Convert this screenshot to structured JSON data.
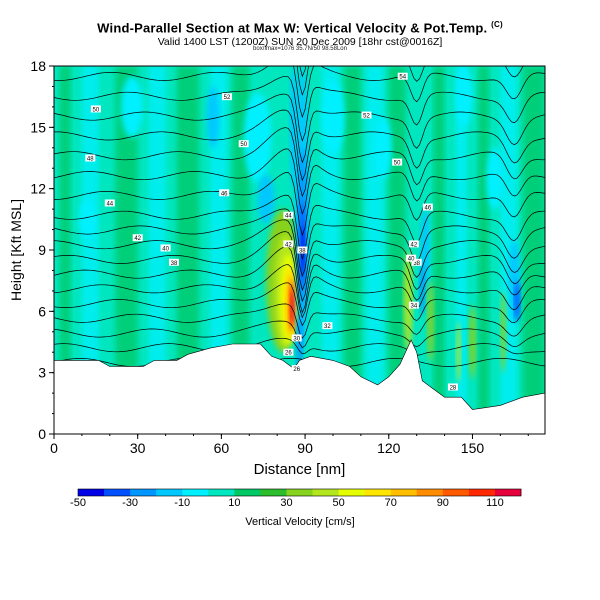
{
  "header": {
    "title": "Wind-Parallel Section at Max W: Vertical Velocity & Pot.Temp.",
    "title_mark": "(C)",
    "subtitle": "Valid 1400 LST (1200Z) SUN 20 Dec 2009 [18hr cst@0016Z]",
    "subtitle_small": "box/Imax=1076 35.7N/50 98.58Lon"
  },
  "chart_data": {
    "type": "heatmap",
    "title": "Wind-Parallel Section at Max W: Vertical Velocity & Pot.Temp.",
    "xlabel": "Distance [nm]",
    "ylabel": "Height [Kft MSL]",
    "xlim": [
      0,
      176
    ],
    "ylim": [
      0,
      18
    ],
    "xticks": [
      0,
      30,
      60,
      90,
      120,
      150
    ],
    "yticks": [
      0,
      3,
      6,
      9,
      12,
      15,
      18
    ],
    "grid": false,
    "colorbar": {
      "label": "Vertical Velocity [cm/s]",
      "tick_labels": [
        -50,
        -30,
        -10,
        10,
        30,
        50,
        70,
        90,
        110
      ],
      "levels": [
        -50,
        -40,
        -30,
        -20,
        -10,
        0,
        10,
        20,
        30,
        40,
        50,
        60,
        70,
        80,
        90,
        100,
        110,
        120
      ],
      "colors": [
        "#0000e6",
        "#0050ff",
        "#0096ff",
        "#00c8ff",
        "#00f0ff",
        "#00e6be",
        "#00c864",
        "#2bbd2b",
        "#87d21e",
        "#b4e61e",
        "#e6ff00",
        "#ffe600",
        "#ffbe00",
        "#ff8c00",
        "#ff5a00",
        "#ff2800",
        "#e6003c"
      ]
    },
    "terrain_height": [
      [
        0,
        3.6
      ],
      [
        16,
        3.6
      ],
      [
        20,
        3.3
      ],
      [
        32,
        3.3
      ],
      [
        36,
        3.6
      ],
      [
        44,
        3.6
      ],
      [
        48,
        3.9
      ],
      [
        56,
        4.2
      ],
      [
        64,
        4.4
      ],
      [
        74,
        4.4
      ],
      [
        78,
        3.8
      ],
      [
        82,
        3.6
      ],
      [
        84,
        3.4
      ],
      [
        86,
        3.2
      ],
      [
        88,
        3.6
      ],
      [
        92,
        3.8
      ],
      [
        100,
        3.6
      ],
      [
        106,
        3.3
      ],
      [
        110,
        2.8
      ],
      [
        116,
        2.4
      ],
      [
        120,
        2.8
      ],
      [
        124,
        3.4
      ],
      [
        128,
        4.6
      ],
      [
        130,
        4.0
      ],
      [
        132,
        2.6
      ],
      [
        136,
        2.2
      ],
      [
        140,
        1.8
      ],
      [
        146,
        1.8
      ],
      [
        150,
        1.2
      ],
      [
        160,
        1.4
      ],
      [
        168,
        1.8
      ],
      [
        176,
        2.0
      ]
    ],
    "updraft_max": {
      "x": 85,
      "y": 6.5,
      "value": 110
    },
    "downdraft_min": {
      "x": 89,
      "y": 9.0,
      "value": -50
    },
    "theta_labels": [
      {
        "x": 15,
        "y": 15.9,
        "text": "50"
      },
      {
        "x": 13,
        "y": 13.5,
        "text": "48"
      },
      {
        "x": 20,
        "y": 11.3,
        "text": "44"
      },
      {
        "x": 30,
        "y": 9.6,
        "text": "42"
      },
      {
        "x": 40,
        "y": 9.1,
        "text": "40"
      },
      {
        "x": 43,
        "y": 8.4,
        "text": "38"
      },
      {
        "x": 62,
        "y": 16.5,
        "text": "52"
      },
      {
        "x": 68,
        "y": 14.2,
        "text": "50"
      },
      {
        "x": 61,
        "y": 11.8,
        "text": "46"
      },
      {
        "x": 84,
        "y": 10.7,
        "text": "44"
      },
      {
        "x": 84,
        "y": 9.3,
        "text": "42"
      },
      {
        "x": 89,
        "y": 9.0,
        "text": "38"
      },
      {
        "x": 98,
        "y": 5.3,
        "text": "32"
      },
      {
        "x": 87,
        "y": 4.7,
        "text": "30"
      },
      {
        "x": 84,
        "y": 4.0,
        "text": "26"
      },
      {
        "x": 87,
        "y": 3.2,
        "text": "26"
      },
      {
        "x": 112,
        "y": 15.6,
        "text": "52"
      },
      {
        "x": 125,
        "y": 17.5,
        "text": "54"
      },
      {
        "x": 123,
        "y": 13.3,
        "text": "50"
      },
      {
        "x": 134,
        "y": 11.1,
        "text": "46"
      },
      {
        "x": 129,
        "y": 9.3,
        "text": "42"
      },
      {
        "x": 130,
        "y": 8.4,
        "text": "38"
      },
      {
        "x": 128,
        "y": 8.6,
        "text": "40"
      },
      {
        "x": 129,
        "y": 6.3,
        "text": "34"
      },
      {
        "x": 143,
        "y": 2.3,
        "text": "28"
      }
    ]
  }
}
